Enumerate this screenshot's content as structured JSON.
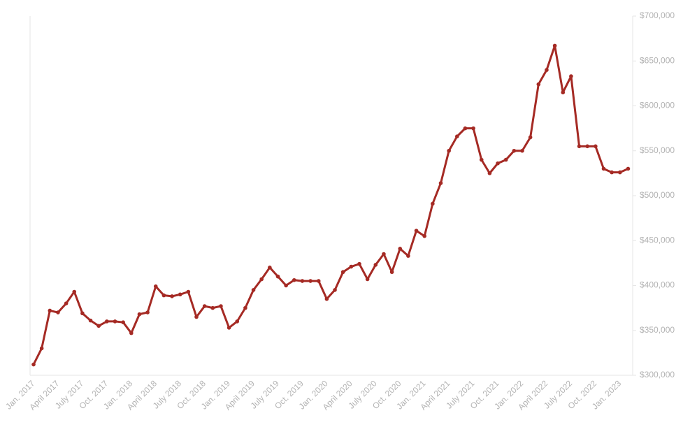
{
  "chart_data": {
    "type": "line",
    "categories": [
      "Jan. 2017",
      null,
      null,
      "April 2017",
      null,
      null,
      "July 2017",
      null,
      null,
      "Oct. 2017",
      null,
      null,
      "Jan. 2018",
      null,
      null,
      "April 2018",
      null,
      null,
      "July 2018",
      null,
      null,
      "Oct. 2018",
      null,
      null,
      "Jan. 2019",
      null,
      null,
      "April 2019",
      null,
      null,
      "July 2019",
      null,
      null,
      "Oct. 2019",
      null,
      null,
      "Jan. 2020",
      null,
      null,
      "April 2020",
      null,
      null,
      "July 2020",
      null,
      null,
      "Oct. 2020",
      null,
      null,
      "Jan. 2021",
      null,
      null,
      "April 2021",
      null,
      null,
      "July 2021",
      null,
      null,
      "Oct. 2021",
      null,
      null,
      "Jan. 2022",
      null,
      null,
      "April 2022",
      null,
      null,
      "July 2022",
      null,
      null,
      "Oct. 2022",
      null,
      null,
      "Jan. 2023",
      null
    ],
    "values": [
      312000,
      330000,
      372000,
      370000,
      380000,
      393000,
      369000,
      361000,
      355000,
      360000,
      360000,
      359000,
      347000,
      368000,
      370000,
      399000,
      389000,
      388000,
      390000,
      393000,
      365000,
      377000,
      375000,
      377000,
      353000,
      360000,
      375000,
      395000,
      407000,
      420000,
      410000,
      400000,
      406000,
      405000,
      405000,
      405000,
      385000,
      395000,
      415000,
      421000,
      424000,
      407000,
      423000,
      435000,
      415000,
      441000,
      433000,
      461000,
      455000,
      491000,
      514000,
      550000,
      566000,
      575000,
      575000,
      540000,
      525000,
      536000,
      540000,
      550000,
      550000,
      565000,
      624000,
      640000,
      667000,
      615000,
      633000,
      555000,
      555000,
      555000,
      530000,
      526000,
      526000,
      530000
    ],
    "color": "#a52a24",
    "ylim": [
      300000,
      700000
    ],
    "yticks": [
      {
        "value": 300000,
        "label": "$300,000"
      },
      {
        "value": 350000,
        "label": "$350,000"
      },
      {
        "value": 400000,
        "label": "$400,000"
      },
      {
        "value": 450000,
        "label": "$450,000"
      },
      {
        "value": 500000,
        "label": "$500,000"
      },
      {
        "value": 550000,
        "label": "$550,000"
      },
      {
        "value": 600000,
        "label": "$600,000"
      },
      {
        "value": 650000,
        "label": "$650,000"
      },
      {
        "value": 700000,
        "label": "$700,000"
      }
    ],
    "grid": false
  }
}
